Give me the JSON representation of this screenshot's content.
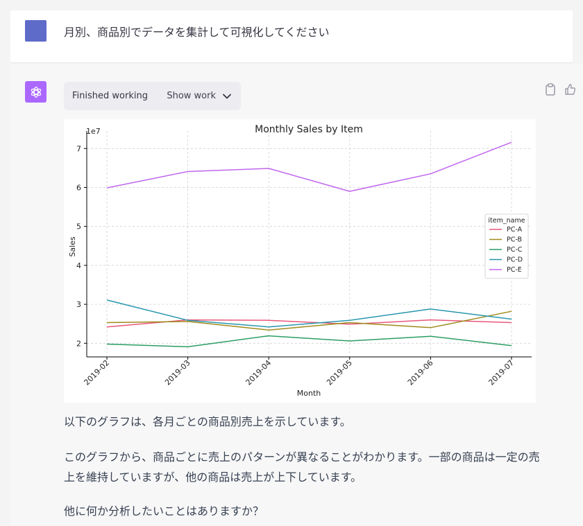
{
  "user": {
    "message": "月別、商品別でデータを集計して可視化してください"
  },
  "assistant": {
    "status_label": "Finished working",
    "show_work_label": "Show work",
    "paragraphs": [
      "以下のグラフは、各月ごとの商品別売上を示しています。",
      "このグラフから、商品ごとに売上のパターンが異なることがわかります。一部の商品は一定の売上を維持していますが、他の商品は売上が上下しています。",
      "他に何か分析したいことはありますか？"
    ]
  },
  "icons": {
    "user_avatar_color": "#5f6bc9",
    "assistant_avatar_color": "#ab68ff",
    "assistant_avatar": "openai-logo-icon",
    "copy": "clipboard-icon",
    "like": "thumbs-up-icon",
    "dropdown": "chevron-down-icon"
  },
  "chart_data": {
    "type": "line",
    "title": "Monthly Sales by Item",
    "xlabel": "Month",
    "ylabel": "Sales",
    "y_scale_label": "1e7",
    "categories": [
      "2019-02",
      "2019-03",
      "2019-04",
      "2019-05",
      "2019-06",
      "2019-07"
    ],
    "yticks": [
      "2",
      "3",
      "4",
      "5",
      "6",
      "7"
    ],
    "ylim": [
      1.65,
      7.45
    ],
    "grid": true,
    "legend_title": "item_name",
    "legend_position": "right",
    "series": [
      {
        "name": "PC-A",
        "color": "#e8577a",
        "values": [
          2.42,
          2.6,
          2.59,
          2.49,
          2.6,
          2.53
        ]
      },
      {
        "name": "PC-B",
        "color": "#9e8a1b",
        "values": [
          2.53,
          2.56,
          2.34,
          2.53,
          2.4,
          2.82
        ]
      },
      {
        "name": "PC-C",
        "color": "#2a9d63",
        "values": [
          1.98,
          1.91,
          2.19,
          2.06,
          2.18,
          1.94
        ]
      },
      {
        "name": "PC-D",
        "color": "#2796ad",
        "values": [
          3.11,
          2.59,
          2.42,
          2.59,
          2.88,
          2.62
        ]
      },
      {
        "name": "PC-E",
        "color": "#c066ee",
        "values": [
          5.99,
          6.41,
          6.49,
          5.9,
          6.35,
          7.16
        ]
      }
    ]
  }
}
